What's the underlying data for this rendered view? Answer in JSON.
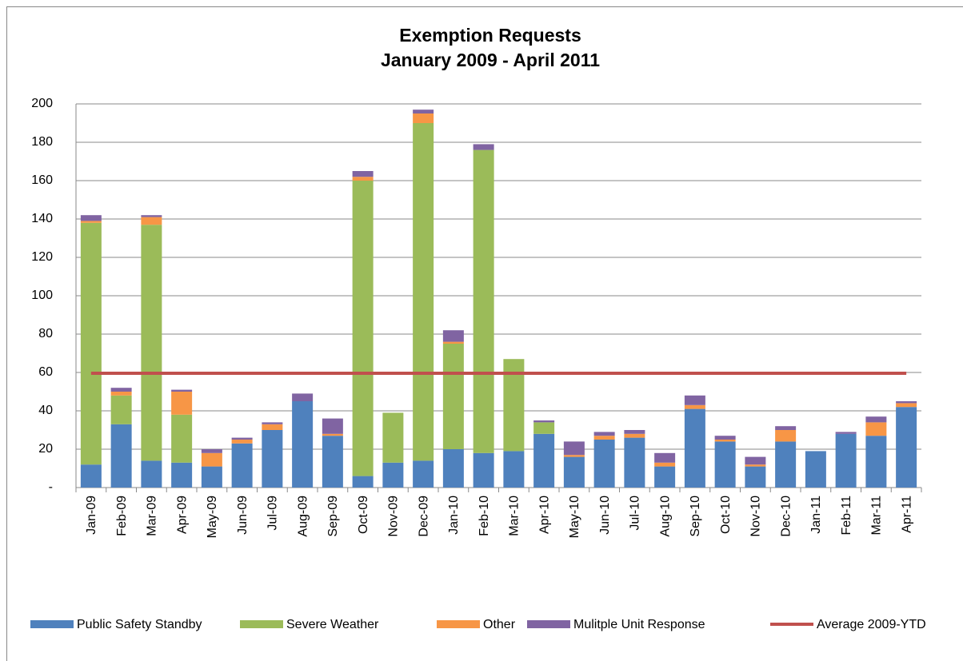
{
  "chart_data": {
    "type": "bar",
    "stacked": true,
    "title": "Exemption Requests",
    "subtitle": "January 2009 - April 2011",
    "categories": [
      "Jan-09",
      "Feb-09",
      "Mar-09",
      "Apr-09",
      "May-09",
      "Jun-09",
      "Jul-09",
      "Aug-09",
      "Sep-09",
      "Oct-09",
      "Nov-09",
      "Dec-09",
      "Jan-10",
      "Feb-10",
      "Mar-10",
      "Apr-10",
      "May-10",
      "Jun-10",
      "Jul-10",
      "Aug-10",
      "Sep-10",
      "Oct-10",
      "Nov-10",
      "Dec-10",
      "Jan-11",
      "Feb-11",
      "Mar-11",
      "Apr-11"
    ],
    "series": [
      {
        "name": "Public Safety Standby",
        "color": "#4f81bd",
        "values": [
          12,
          33,
          14,
          13,
          11,
          23,
          30,
          45,
          27,
          6,
          13,
          14,
          20,
          18,
          19,
          28,
          16,
          25,
          26,
          11,
          41,
          24,
          11,
          24,
          19,
          28,
          27,
          42
        ]
      },
      {
        "name": "Severe Weather",
        "color": "#9bbb59",
        "values": [
          126,
          15,
          123,
          25,
          0,
          0,
          0,
          0,
          0,
          154,
          26,
          176,
          55,
          158,
          48,
          6,
          0,
          0,
          0,
          0,
          0,
          0,
          0,
          0,
          0,
          0,
          0,
          0
        ]
      },
      {
        "name": "Other",
        "color": "#f79646",
        "values": [
          1,
          2,
          4,
          12,
          7,
          2,
          3,
          0,
          1,
          2,
          0,
          5,
          1,
          0,
          0,
          0,
          1,
          2,
          2,
          2,
          2,
          1,
          1,
          6,
          0,
          0,
          7,
          2
        ]
      },
      {
        "name": "Mulitple Unit Response",
        "color": "#8064a2",
        "values": [
          3,
          2,
          1,
          1,
          2,
          1,
          1,
          4,
          8,
          3,
          0,
          2,
          6,
          3,
          0,
          1,
          7,
          2,
          2,
          5,
          5,
          2,
          4,
          2,
          0,
          1,
          3,
          1
        ]
      },
      {
        "name": "Average 2009-YTD",
        "color": "#c0504d",
        "type": "line",
        "values": [
          59.6,
          59.6,
          59.6,
          59.6,
          59.6,
          59.6,
          59.6,
          59.6,
          59.6,
          59.6,
          59.6,
          59.6,
          59.6,
          59.6,
          59.6,
          59.6,
          59.6,
          59.6,
          59.6,
          59.6,
          59.6,
          59.6,
          59.6,
          59.6,
          59.6,
          59.6,
          59.6,
          59.6
        ]
      }
    ],
    "ylim": [
      0,
      200
    ],
    "yticks": [
      {
        "value": 0,
        "label": "-"
      },
      20,
      40,
      60,
      80,
      100,
      120,
      140,
      160,
      180,
      200
    ],
    "grid": true,
    "legend": "bottom"
  }
}
